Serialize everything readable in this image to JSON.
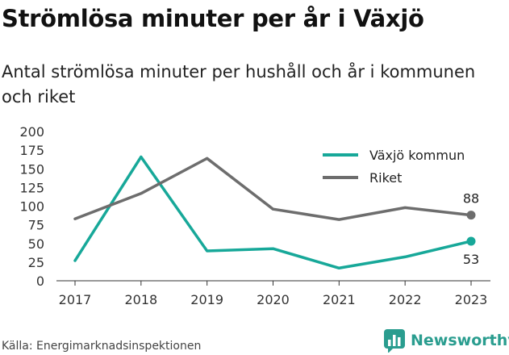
{
  "header": {
    "title": "Strömlösa minuter per år i Växjö",
    "subtitle": "Antal strömlösa minuter per hushåll och år i kommunen och riket"
  },
  "footer": {
    "source": "Källa: Energimarknadsinspektionen",
    "brand": "Newsworthy",
    "brand_icon": "bar-chart-logo-icon",
    "brand_color": "#2a9d8f"
  },
  "chart_data": {
    "type": "line",
    "x": [
      "2017",
      "2018",
      "2019",
      "2020",
      "2021",
      "2022",
      "2023"
    ],
    "ylim": [
      0,
      200
    ],
    "yticks": [
      0,
      25,
      50,
      75,
      100,
      125,
      150,
      175,
      200
    ],
    "grid": false,
    "legend_position": "top-right",
    "series": [
      {
        "name": "Växjö kommun",
        "color": "#17a899",
        "values": [
          27,
          166,
          40,
          43,
          17,
          32,
          53
        ],
        "end_label": "53"
      },
      {
        "name": "Riket",
        "color": "#6d6d6d",
        "values": [
          83,
          117,
          164,
          96,
          82,
          98,
          88
        ],
        "end_label": "88"
      }
    ]
  }
}
